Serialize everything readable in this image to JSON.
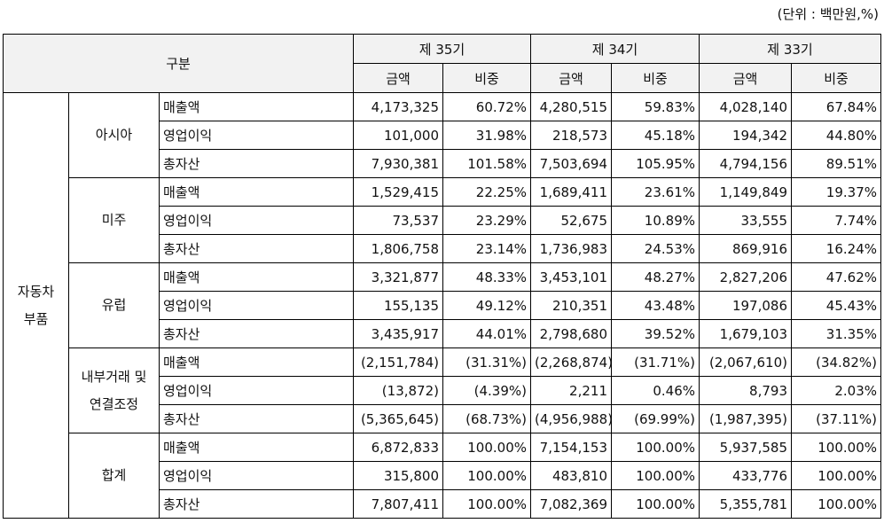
{
  "unit_note": "(단위 : 백만원,%)",
  "header": {
    "label": "구분",
    "periods": [
      "제 35기",
      "제 34기",
      "제 33기"
    ],
    "amount_label": "금액",
    "ratio_label": "비중"
  },
  "group": {
    "line1": "자동차",
    "line2": "부품"
  },
  "regions": [
    {
      "name_lines": [
        "아시아"
      ],
      "rows": [
        {
          "item": "매출액",
          "values": [
            "4,173,325",
            "60.72%",
            "4,280,515",
            "59.83%",
            "4,028,140",
            "67.84%"
          ]
        },
        {
          "item": "영업이익",
          "values": [
            "101,000",
            "31.98%",
            "218,573",
            "45.18%",
            "194,342",
            "44.80%"
          ]
        },
        {
          "item": "총자산",
          "values": [
            "7,930,381",
            "101.58%",
            "7,503,694",
            "105.95%",
            "4,794,156",
            "89.51%"
          ]
        }
      ]
    },
    {
      "name_lines": [
        "미주"
      ],
      "rows": [
        {
          "item": "매출액",
          "values": [
            "1,529,415",
            "22.25%",
            "1,689,411",
            "23.61%",
            "1,149,849",
            "19.37%"
          ]
        },
        {
          "item": "영업이익",
          "values": [
            "73,537",
            "23.29%",
            "52,675",
            "10.89%",
            "33,555",
            "7.74%"
          ]
        },
        {
          "item": "총자산",
          "values": [
            "1,806,758",
            "23.14%",
            "1,736,983",
            "24.53%",
            "869,916",
            "16.24%"
          ]
        }
      ]
    },
    {
      "name_lines": [
        "유럽"
      ],
      "rows": [
        {
          "item": "매출액",
          "values": [
            "3,321,877",
            "48.33%",
            "3,453,101",
            "48.27%",
            "2,827,206",
            "47.62%"
          ]
        },
        {
          "item": "영업이익",
          "values": [
            "155,135",
            "49.12%",
            "210,351",
            "43.48%",
            "197,086",
            "45.43%"
          ]
        },
        {
          "item": "총자산",
          "values": [
            "3,435,917",
            "44.01%",
            "2,798,680",
            "39.52%",
            "1,679,103",
            "31.35%"
          ]
        }
      ]
    },
    {
      "name_lines": [
        "내부거래 및",
        "연결조정"
      ],
      "rows": [
        {
          "item": "매출액",
          "values": [
            "(2,151,784)",
            "(31.31%)",
            "(2,268,874)",
            "(31.71%)",
            "(2,067,610)",
            "(34.82%)"
          ]
        },
        {
          "item": "영업이익",
          "values": [
            "(13,872)",
            "(4.39%)",
            "2,211",
            "0.46%",
            "8,793",
            "2.03%"
          ]
        },
        {
          "item": "총자산",
          "values": [
            "(5,365,645)",
            "(68.73%)",
            "(4,956,988)",
            "(69.99%)",
            "(1,987,395)",
            "(37.11%)"
          ]
        }
      ]
    },
    {
      "name_lines": [
        "합계"
      ],
      "rows": [
        {
          "item": "매출액",
          "values": [
            "6,872,833",
            "100.00%",
            "7,154,153",
            "100.00%",
            "5,937,585",
            "100.00%"
          ]
        },
        {
          "item": "영업이익",
          "values": [
            "315,800",
            "100.00%",
            "483,810",
            "100.00%",
            "433,776",
            "100.00%"
          ]
        },
        {
          "item": "총자산",
          "values": [
            "7,807,411",
            "100.00%",
            "7,082,369",
            "100.00%",
            "5,355,781",
            "100.00%"
          ]
        }
      ]
    }
  ]
}
